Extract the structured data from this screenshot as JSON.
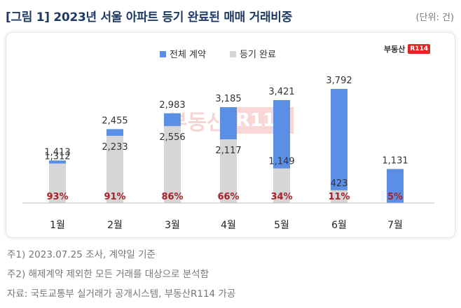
{
  "header": {
    "title": "[그림 1] 2023년 서울 아파트 등기 완료된 매매 거래비중",
    "unit": "(단위: 건)"
  },
  "logo": {
    "text": "부동산",
    "box": "R114"
  },
  "colors": {
    "total": "#5b8fe6",
    "completed": "#d6d6d6",
    "ratio_text": "#a8222b",
    "label_text": "#333333"
  },
  "chart_data": {
    "type": "bar",
    "categories": [
      "1월",
      "2월",
      "3월",
      "4월",
      "5월",
      "6월",
      "7월"
    ],
    "series": [
      {
        "name": "전체 계약",
        "values": [
          1413,
          2455,
          2983,
          3185,
          3421,
          3792,
          1131
        ],
        "labels": [
          "1,413",
          "2,455",
          "2,983",
          "3,185",
          "3,421",
          "3,792",
          "1,131"
        ]
      },
      {
        "name": "등기 완료",
        "values": [
          1312,
          2233,
          2556,
          2117,
          1149,
          423,
          null
        ],
        "labels": [
          "1,312",
          "2,233",
          "2,556",
          "2,117",
          "1,149",
          "423",
          ""
        ]
      }
    ],
    "ratios": [
      "93%",
      "91%",
      "86%",
      "66%",
      "34%",
      "11%",
      "5%"
    ],
    "ylim": [
      0,
      3792
    ],
    "grid": false,
    "legend_position": "top-center",
    "overlapping_bars": true
  },
  "notes": [
    "주1) 2023.07.25 조사, 계약일 기준",
    "주2) 해제계약 제외한 모든 거래를 대상으로 분석함",
    "자료: 국토교통부 실거래가 공개시스템, 부동산R114 가공"
  ]
}
